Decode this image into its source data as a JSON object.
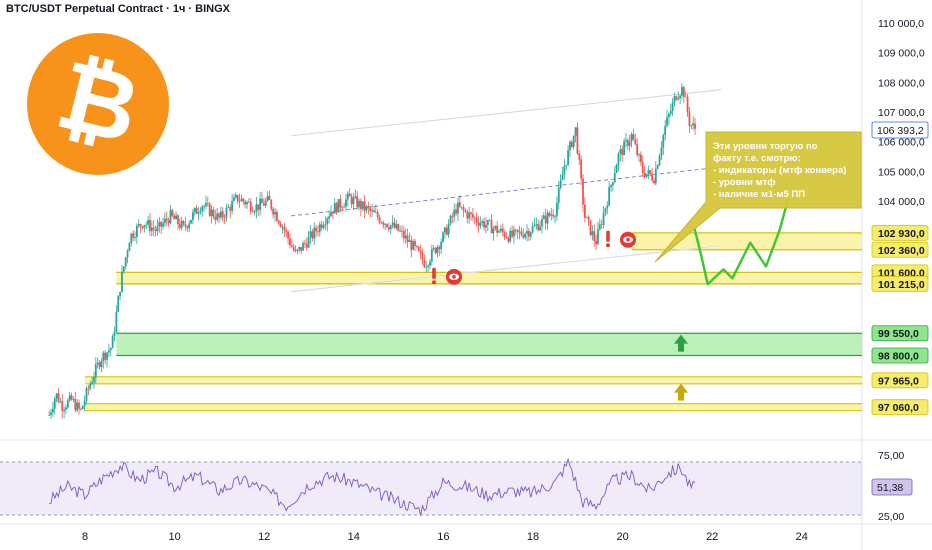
{
  "header": {
    "title": "BTC/USDT Perpetual Contract · 1ч · BINGX"
  },
  "colors": {
    "bull": "#26a69a",
    "bear": "#ef5350",
    "yellow_zone": "#f5ec6c",
    "yellow_line": "#d4c30e",
    "green_zone": "#8ee68a",
    "green_line": "#2ea043",
    "channel": "#ffffff",
    "rsi_line": "#7e57c2",
    "callout_bg": "#d6c63a",
    "btc_orange": "#f7931a",
    "projection": "#3ec42e",
    "marker_red": "#e53935"
  },
  "icons": [
    "bitcoin-logo",
    "exclamation-icon",
    "eye-icon",
    "arrow-up-icon"
  ],
  "callout": {
    "lines": [
      "Эти уровни торгую по",
      "факту т.е. смотрю:",
      "- индикаторы (мтф конвера)",
      "- уровни мтф",
      "- наличие м1-м5 ПП"
    ]
  },
  "chart_data": {
    "type": "candlestick",
    "price_axis": {
      "ticks": [
        {
          "value": 110000,
          "label": "110 000,0"
        },
        {
          "value": 109000,
          "label": "109 000,0"
        },
        {
          "value": 108000,
          "label": "108 000,0"
        },
        {
          "value": 107000,
          "label": "107 000,0"
        },
        {
          "value": 106000,
          "label": "106 000,0"
        },
        {
          "value": 105000,
          "label": "105 000,0"
        },
        {
          "value": 104000,
          "label": "104 000,0"
        },
        {
          "value": 98800,
          "label": "98 800,0"
        }
      ],
      "current_price": {
        "value": 106393.2,
        "label": "106 393,2"
      },
      "levels": [
        {
          "value": 102930,
          "label": "102 930,0",
          "zone": "yellow"
        },
        {
          "value": 102360,
          "label": "102 360,0",
          "zone": "yellow"
        },
        {
          "value": 101600,
          "label": "101 600,0",
          "zone": "yellow"
        },
        {
          "value": 101215,
          "label": "101 215,0",
          "zone": "yellow"
        },
        {
          "value": 99550,
          "label": "99 550,0",
          "zone": "green"
        },
        {
          "value": 98800,
          "label": "98 800,0",
          "zone": "green"
        },
        {
          "value": 97965,
          "label": "97 965,0",
          "zone": "yellow"
        },
        {
          "value": 97060,
          "label": "97 060,0",
          "zone": "yellow"
        }
      ]
    },
    "x_axis": {
      "ticks": [
        "8",
        "10",
        "12",
        "14",
        "16",
        "18",
        "20",
        "22",
        "24"
      ]
    },
    "rsi": {
      "ticks": [
        {
          "value": 75,
          "label": "75,00"
        },
        {
          "value": 25,
          "label": "25,00"
        }
      ],
      "current": {
        "value": 51.38,
        "label": "51,38"
      }
    },
    "price_path": [
      {
        "day": 7.2,
        "price": 96800
      },
      {
        "day": 7.35,
        "price": 97500
      },
      {
        "day": 7.5,
        "price": 97100
      },
      {
        "day": 7.7,
        "price": 97300
      },
      {
        "day": 7.9,
        "price": 96900
      },
      {
        "day": 8.1,
        "price": 97800
      },
      {
        "day": 8.35,
        "price": 98700
      },
      {
        "day": 8.6,
        "price": 99100
      },
      {
        "day": 8.8,
        "price": 101300
      },
      {
        "day": 9.0,
        "price": 102800
      },
      {
        "day": 9.3,
        "price": 103300
      },
      {
        "day": 9.6,
        "price": 103000
      },
      {
        "day": 9.9,
        "price": 103500
      },
      {
        "day": 10.2,
        "price": 103100
      },
      {
        "day": 10.6,
        "price": 103900
      },
      {
        "day": 11.0,
        "price": 103400
      },
      {
        "day": 11.4,
        "price": 104100
      },
      {
        "day": 11.8,
        "price": 103800
      },
      {
        "day": 12.1,
        "price": 104000
      },
      {
        "day": 12.4,
        "price": 103200
      },
      {
        "day": 12.7,
        "price": 102200
      },
      {
        "day": 13.1,
        "price": 102900
      },
      {
        "day": 13.5,
        "price": 103700
      },
      {
        "day": 13.9,
        "price": 104100
      },
      {
        "day": 14.2,
        "price": 103800
      },
      {
        "day": 14.6,
        "price": 103400
      },
      {
        "day": 15.0,
        "price": 103000
      },
      {
        "day": 15.3,
        "price": 102500
      },
      {
        "day": 15.6,
        "price": 101900
      },
      {
        "day": 16.0,
        "price": 102800
      },
      {
        "day": 16.3,
        "price": 103800
      },
      {
        "day": 16.7,
        "price": 103400
      },
      {
        "day": 17.1,
        "price": 103100
      },
      {
        "day": 17.5,
        "price": 102800
      },
      {
        "day": 17.9,
        "price": 103000
      },
      {
        "day": 18.2,
        "price": 103300
      },
      {
        "day": 18.5,
        "price": 103700
      },
      {
        "day": 18.7,
        "price": 105200
      },
      {
        "day": 18.95,
        "price": 106400
      },
      {
        "day": 19.15,
        "price": 103500
      },
      {
        "day": 19.4,
        "price": 102600
      },
      {
        "day": 19.65,
        "price": 104000
      },
      {
        "day": 19.9,
        "price": 105500
      },
      {
        "day": 20.2,
        "price": 106200
      },
      {
        "day": 20.45,
        "price": 105000
      },
      {
        "day": 20.7,
        "price": 104800
      },
      {
        "day": 20.95,
        "price": 106500
      },
      {
        "day": 21.2,
        "price": 107600
      },
      {
        "day": 21.35,
        "price": 107800
      },
      {
        "day": 21.5,
        "price": 106600
      },
      {
        "day": 21.65,
        "price": 106393.2
      }
    ],
    "rsi_path": [
      {
        "day": 7.2,
        "value": 38
      },
      {
        "day": 7.6,
        "value": 52
      },
      {
        "day": 8.0,
        "value": 44
      },
      {
        "day": 8.4,
        "value": 60
      },
      {
        "day": 8.8,
        "value": 72
      },
      {
        "day": 9.2,
        "value": 58
      },
      {
        "day": 9.6,
        "value": 66
      },
      {
        "day": 10.0,
        "value": 52
      },
      {
        "day": 10.5,
        "value": 62
      },
      {
        "day": 11.0,
        "value": 48
      },
      {
        "day": 11.5,
        "value": 58
      },
      {
        "day": 12.0,
        "value": 50
      },
      {
        "day": 12.5,
        "value": 34
      },
      {
        "day": 13.0,
        "value": 54
      },
      {
        "day": 13.5,
        "value": 62
      },
      {
        "day": 14.0,
        "value": 56
      },
      {
        "day": 14.5,
        "value": 46
      },
      {
        "day": 15.0,
        "value": 38
      },
      {
        "day": 15.5,
        "value": 30
      },
      {
        "day": 16.0,
        "value": 56
      },
      {
        "day": 16.5,
        "value": 52
      },
      {
        "day": 17.0,
        "value": 44
      },
      {
        "day": 17.5,
        "value": 48
      },
      {
        "day": 18.0,
        "value": 46
      },
      {
        "day": 18.5,
        "value": 56
      },
      {
        "day": 18.8,
        "value": 76
      },
      {
        "day": 19.1,
        "value": 38
      },
      {
        "day": 19.4,
        "value": 34
      },
      {
        "day": 19.8,
        "value": 58
      },
      {
        "day": 20.2,
        "value": 62
      },
      {
        "day": 20.6,
        "value": 48
      },
      {
        "day": 21.0,
        "value": 64
      },
      {
        "day": 21.3,
        "value": 70
      },
      {
        "day": 21.5,
        "value": 52
      },
      {
        "day": 21.65,
        "value": 51.38
      }
    ],
    "channel": [
      {
        "from": {
          "day": 12.6,
          "price": 106200
        },
        "to": {
          "day": 22.2,
          "price": 107750
        }
      },
      {
        "from": {
          "day": 12.6,
          "price": 100950
        },
        "to": {
          "day": 22.2,
          "price": 102500
        }
      },
      {
        "from": {
          "day": 12.6,
          "price": 103500
        },
        "to": {
          "day": 22.2,
          "price": 105150
        },
        "dashed": true
      }
    ],
    "projection": [
      {
        "day": 21.6,
        "price": 103100
      },
      {
        "day": 21.75,
        "price": 102200
      },
      {
        "day": 21.9,
        "price": 101200
      },
      {
        "day": 22.25,
        "price": 101700
      },
      {
        "day": 22.45,
        "price": 101400
      },
      {
        "day": 22.85,
        "price": 102600
      },
      {
        "day": 23.2,
        "price": 101800
      },
      {
        "day": 23.5,
        "price": 103000
      },
      {
        "day": 23.7,
        "price": 104100
      }
    ]
  }
}
